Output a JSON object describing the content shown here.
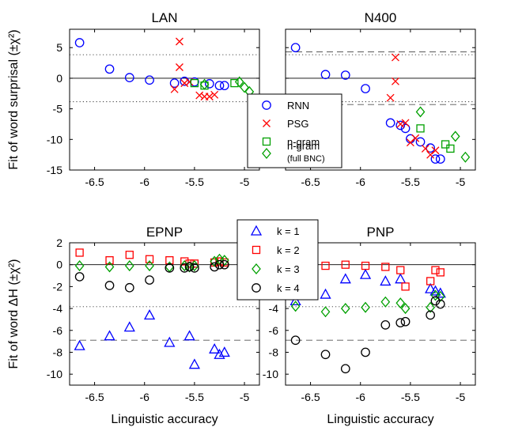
{
  "chart_data": [
    {
      "type": "scatter",
      "title": "LAN",
      "xlabel": "",
      "ylabel": "Fit of word surprisal (±χ²)",
      "xlim": [
        -6.75,
        -4.85
      ],
      "ylim": [
        -15,
        8
      ],
      "xticks": [
        -6.5,
        -6,
        -5.5,
        -5
      ],
      "xtick_labels": [
        "-6.5",
        "-6",
        "-5.5",
        "-5"
      ],
      "yticks": [
        -15,
        -10,
        -5,
        0,
        5
      ],
      "ytick_labels": [
        "-15",
        "-10",
        "-5",
        "0",
        "5"
      ],
      "reference_lines": [
        {
          "y": 0,
          "style": "solid"
        },
        {
          "y": 3.84,
          "style": "dotted"
        },
        {
          "y": -3.84,
          "style": "dotted"
        }
      ],
      "series": [
        {
          "name": "RNN",
          "marker": "circle",
          "color": "#0000ff",
          "x": [
            -6.65,
            -6.35,
            -6.15,
            -5.95,
            -5.7,
            -5.6,
            -5.5,
            -5.35,
            -5.25,
            -5.2
          ],
          "y": [
            5.8,
            1.5,
            0.1,
            -0.3,
            -0.8,
            -0.5,
            -0.6,
            -0.9,
            -1.2,
            -1.2
          ]
        },
        {
          "name": "PSG",
          "marker": "x",
          "color": "#ff0000",
          "x": [
            -5.7,
            -5.65,
            -5.65,
            -5.6,
            -5.55,
            -5.45,
            -5.4,
            -5.35,
            -5.3
          ],
          "y": [
            -1.8,
            6.0,
            1.8,
            -0.8,
            -0.6,
            -2.8,
            -3.0,
            -3.0,
            -2.7
          ]
        },
        {
          "name": "n-gram",
          "marker": "square",
          "color": "#00a000",
          "x": [
            -5.5,
            -5.4,
            -5.1
          ],
          "y": [
            -0.8,
            -1.2,
            -0.8
          ]
        },
        {
          "name": "n-gram (full BNC)",
          "marker": "diamond",
          "color": "#00a000",
          "x": [
            -5.4,
            -5.05,
            -5.0,
            -4.95
          ],
          "y": [
            -1.0,
            -0.6,
            -1.5,
            -2.2
          ]
        }
      ]
    },
    {
      "type": "scatter",
      "title": "N400",
      "xlabel": "",
      "ylabel": "",
      "xlim": [
        -6.75,
        -4.85
      ],
      "ylim": [
        -15,
        8
      ],
      "xticks": [
        -6.5,
        -6,
        -5.5,
        -5
      ],
      "xtick_labels": [
        "-6.5",
        "-6",
        "-5.5",
        "-5"
      ],
      "yticks": [
        -15,
        -10,
        -5,
        0,
        5
      ],
      "ytick_labels": [
        "",
        "",
        "",
        "",
        ""
      ],
      "reference_lines": [
        {
          "y": 0,
          "style": "solid"
        },
        {
          "y": 3.84,
          "style": "dotted"
        },
        {
          "y": -3.84,
          "style": "dotted"
        },
        {
          "y": 4.3,
          "style": "dashed"
        },
        {
          "y": -4.3,
          "style": "dashed"
        }
      ],
      "series": [
        {
          "name": "RNN",
          "marker": "circle",
          "color": "#0000ff",
          "x": [
            -6.65,
            -6.35,
            -6.15,
            -5.95,
            -5.7,
            -5.6,
            -5.55,
            -5.5,
            -5.4,
            -5.3,
            -5.25,
            -5.2
          ],
          "y": [
            5.0,
            0.6,
            0.5,
            -1.7,
            -7.3,
            -7.7,
            -8.2,
            -9.9,
            -10.4,
            -11.4,
            -13.2,
            -13.2
          ]
        },
        {
          "name": "PSG",
          "marker": "x",
          "color": "#ff0000",
          "x": [
            -5.7,
            -5.65,
            -5.65,
            -5.6,
            -5.55,
            -5.5,
            -5.45,
            -5.35,
            -5.3,
            -5.25
          ],
          "y": [
            -3.2,
            3.4,
            -0.5,
            -7.5,
            -7.3,
            -10.5,
            -9.8,
            -11.5,
            -12.5,
            -11.8
          ]
        },
        {
          "name": "n-gram",
          "marker": "square",
          "color": "#00a000",
          "x": [
            -5.4,
            -5.15,
            -5.1
          ],
          "y": [
            -8.2,
            -10.8,
            -11.5
          ]
        },
        {
          "name": "n-gram (full BNC)",
          "marker": "diamond",
          "color": "#00a000",
          "x": [
            -5.4,
            -5.05,
            -4.95
          ],
          "y": [
            -5.5,
            -9.5,
            -12.9
          ]
        }
      ]
    },
    {
      "type": "scatter",
      "title": "EPNP",
      "xlabel": "Linguistic accuracy",
      "ylabel": "Fit of word ΔH (±χ²)",
      "xlim": [
        -6.75,
        -4.85
      ],
      "ylim": [
        -11,
        2
      ],
      "xticks": [
        -6.5,
        -6,
        -5.5,
        -5
      ],
      "xtick_labels": [
        "-6.5",
        "-6",
        "-5.5",
        "-5"
      ],
      "yticks": [
        -10,
        -8,
        -6,
        -4,
        -2,
        0,
        2
      ],
      "ytick_labels": [
        "-10",
        "-8",
        "-6",
        "-4",
        "-2",
        "0",
        "2"
      ],
      "reference_lines": [
        {
          "y": 0,
          "style": "solid"
        },
        {
          "y": -3.84,
          "style": "dotted"
        },
        {
          "y": -6.9,
          "style": "dashed"
        }
      ],
      "series": [
        {
          "name": "k = 1",
          "marker": "triangle",
          "color": "#0000ff",
          "x": [
            -6.65,
            -6.35,
            -6.15,
            -5.95,
            -5.75,
            -5.55,
            -5.5,
            -5.3,
            -5.25,
            -5.2
          ],
          "y": [
            -7.4,
            -6.5,
            -5.7,
            -4.6,
            -7.1,
            -6.5,
            -9.1,
            -7.7,
            -8.2,
            -8.0
          ]
        },
        {
          "name": "k = 2",
          "marker": "square",
          "color": "#ff0000",
          "x": [
            -6.65,
            -6.35,
            -6.15,
            -5.95,
            -5.75,
            -5.6,
            -5.55,
            -5.5,
            -5.3,
            -5.25,
            -5.2
          ],
          "y": [
            1.1,
            0.4,
            0.9,
            0.5,
            0.4,
            0.3,
            0.1,
            0.1,
            0.2,
            0.3,
            0.2
          ]
        },
        {
          "name": "k = 3",
          "marker": "diamond",
          "color": "#00a000",
          "x": [
            -6.65,
            -6.35,
            -6.15,
            -5.95,
            -5.75,
            -5.6,
            -5.55,
            -5.5,
            -5.3,
            -5.25,
            -5.2
          ],
          "y": [
            -0.1,
            -0.2,
            -0.1,
            -0.1,
            -0.2,
            -0.1,
            -0.2,
            -0.1,
            0.3,
            0.5,
            0.4
          ]
        },
        {
          "name": "k = 4",
          "marker": "circle",
          "color": "#000000",
          "x": [
            -6.65,
            -6.35,
            -6.15,
            -5.95,
            -5.75,
            -5.6,
            -5.55,
            -5.5,
            -5.3,
            -5.25,
            -5.2
          ],
          "y": [
            -1.1,
            -1.9,
            -2.1,
            -1.4,
            -0.3,
            -0.3,
            -0.2,
            -0.3,
            -0.2,
            0.0,
            0.0
          ]
        }
      ]
    },
    {
      "type": "scatter",
      "title": "PNP",
      "xlabel": "Linguistic accuracy",
      "ylabel": "",
      "xlim": [
        -6.75,
        -4.85
      ],
      "ylim": [
        -11,
        2
      ],
      "xticks": [
        -6.5,
        -6,
        -5.5,
        -5
      ],
      "xtick_labels": [
        "-6.5",
        "-6",
        "-5.5",
        "-5"
      ],
      "yticks": [
        -10,
        -8,
        -6,
        -4,
        -2,
        0,
        2
      ],
      "ytick_labels": [
        "-10",
        "-8",
        "-6",
        "-4",
        "-2",
        "0",
        "2"
      ],
      "reference_lines": [
        {
          "y": 0,
          "style": "solid"
        },
        {
          "y": -3.84,
          "style": "dotted"
        },
        {
          "y": -6.9,
          "style": "dashed"
        }
      ],
      "series": [
        {
          "name": "k = 1",
          "marker": "triangle",
          "color": "#0000ff",
          "x": [
            -6.65,
            -6.35,
            -6.15,
            -5.95,
            -5.75,
            -5.6,
            -5.3,
            -5.25,
            -5.2
          ],
          "y": [
            -3.3,
            -2.7,
            -1.3,
            -0.9,
            -1.5,
            -1.3,
            -2.2,
            -2.4,
            -2.6
          ]
        },
        {
          "name": "k = 2",
          "marker": "square",
          "color": "#ff0000",
          "x": [
            -6.65,
            -6.35,
            -6.15,
            -5.95,
            -5.75,
            -5.6,
            -5.55,
            -5.3,
            -5.25,
            -5.2
          ],
          "y": [
            0.0,
            -0.1,
            0.0,
            -0.1,
            -0.2,
            -0.5,
            -2.0,
            -1.5,
            -0.5,
            -0.7
          ]
        },
        {
          "name": "k = 3",
          "marker": "diamond",
          "color": "#00a000",
          "x": [
            -6.65,
            -6.35,
            -6.15,
            -5.95,
            -5.75,
            -5.6,
            -5.55,
            -5.3,
            -5.25,
            -5.2
          ],
          "y": [
            -3.8,
            -4.3,
            -4.0,
            -3.9,
            -3.4,
            -3.5,
            -4.0,
            -3.9,
            -2.8,
            -2.9
          ]
        },
        {
          "name": "k = 4",
          "marker": "circle",
          "color": "#000000",
          "x": [
            -6.65,
            -6.35,
            -6.15,
            -5.95,
            -5.75,
            -5.6,
            -5.55,
            -5.3,
            -5.25,
            -5.2
          ],
          "y": [
            -6.9,
            -8.2,
            -9.5,
            -8.0,
            -5.5,
            -5.3,
            -5.2,
            -4.6,
            -3.3,
            -3.6
          ]
        }
      ]
    }
  ]
}
